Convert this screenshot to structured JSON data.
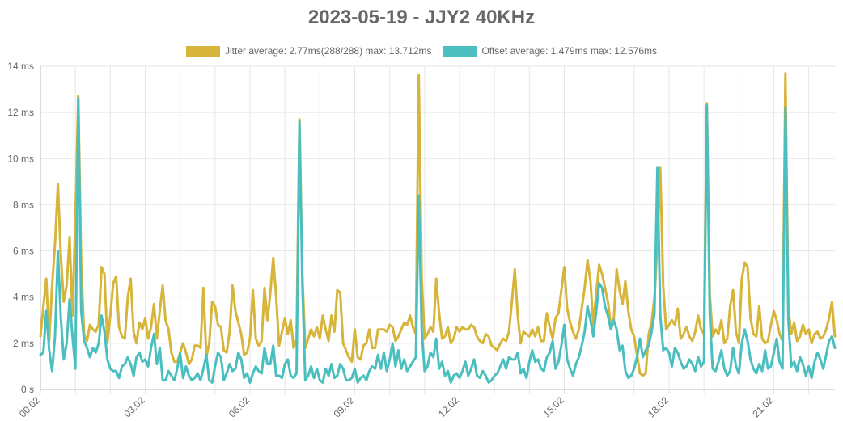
{
  "colors": {
    "jitter": "#d7b43a",
    "offset": "#4bbfc0",
    "grid": "#e6e6e6",
    "text": "#666666"
  },
  "chart_data": {
    "type": "line",
    "title": "2023-05-19 - JJY2 40KHz",
    "xlabel": "",
    "ylabel": "",
    "x_start": "00:02",
    "x_step_minutes": 5,
    "ylim": [
      0,
      14
    ],
    "y_unit": "ms",
    "yticks": [
      "0 s",
      "2 ms",
      "4 ms",
      "6 ms",
      "8 ms",
      "10 ms",
      "12 ms",
      "14 ms"
    ],
    "xticks": [
      "00:02",
      "03:02",
      "06:02",
      "09:02",
      "12:02",
      "15:02",
      "18:02",
      "21:02"
    ],
    "grid": true,
    "legend_position": "top-center",
    "series": [
      {
        "name": "Jitter average: 2.77ms(288/288) max: 13.712ms",
        "values": [
          2.3,
          3.6,
          4.8,
          2.1,
          4.5,
          6.3,
          8.9,
          5.8,
          3.8,
          4.5,
          6.6,
          3.2,
          7.5,
          12.7,
          5.4,
          2.4,
          2.1,
          2.8,
          2.6,
          2.5,
          2.8,
          5.3,
          5.0,
          2.0,
          3.2,
          4.6,
          4.9,
          2.7,
          2.3,
          2.2,
          4.0,
          4.8,
          2.5,
          2.0,
          2.9,
          2.6,
          3.1,
          2.2,
          2.7,
          3.7,
          2.2,
          3.4,
          4.5,
          3.0,
          2.6,
          1.6,
          1.2,
          1.2,
          1.6,
          2.0,
          1.6,
          1.1,
          1.3,
          1.9,
          1.9,
          1.8,
          4.4,
          1.4,
          2.0,
          3.8,
          3.6,
          2.8,
          2.7,
          1.7,
          1.6,
          2.5,
          4.5,
          3.4,
          2.9,
          2.4,
          1.5,
          1.6,
          2.2,
          4.3,
          2.2,
          1.9,
          2.1,
          4.4,
          3.0,
          4.2,
          5.7,
          4.0,
          1.9,
          2.5,
          3.1,
          2.4,
          3.0,
          1.8,
          2.2,
          11.7,
          5.0,
          1.8,
          2.2,
          2.6,
          2.3,
          2.7,
          2.2,
          3.2,
          2.6,
          2.1,
          3.2,
          2.5,
          4.3,
          4.2,
          2.0,
          1.7,
          1.4,
          1.2,
          2.6,
          1.4,
          1.3,
          1.9,
          2.0,
          2.6,
          1.8,
          1.8,
          2.6,
          2.6,
          2.6,
          2.5,
          2.8,
          2.7,
          2.1,
          2.3,
          2.6,
          2.9,
          2.8,
          3.2,
          2.7,
          2.4,
          13.6,
          4.9,
          2.2,
          2.4,
          2.7,
          2.5,
          4.8,
          3.3,
          2.2,
          2.3,
          2.7,
          2.0,
          2.2,
          2.7,
          2.5,
          2.7,
          2.6,
          2.6,
          2.8,
          2.7,
          2.3,
          2.1,
          2.0,
          2.4,
          2.3,
          1.9,
          1.8,
          1.7,
          2.0,
          2.2,
          2.1,
          2.5,
          3.8,
          5.2,
          3.2,
          2.0,
          2.5,
          2.4,
          2.3,
          2.6,
          2.3,
          2.7,
          2.1,
          2.1,
          3.3,
          2.7,
          2.2,
          3.1,
          3.3,
          4.3,
          5.3,
          3.5,
          2.9,
          2.5,
          2.2,
          2.6,
          3.5,
          4.4,
          5.6,
          4.7,
          2.8,
          4.2,
          5.4,
          5.0,
          4.4,
          3.8,
          2.8,
          3.0,
          5.2,
          4.3,
          3.7,
          4.7,
          3.4,
          2.6,
          2.3,
          1.5,
          0.7,
          0.6,
          0.7,
          2.4,
          2.9,
          4.0,
          6.3,
          9.6,
          4.5,
          2.6,
          2.8,
          3.0,
          2.8,
          3.5,
          2.2,
          2.4,
          2.7,
          2.3,
          2.1,
          2.5,
          3.2,
          2.6,
          2.4,
          12.4,
          4.1,
          2.3,
          2.6,
          2.4,
          3.0,
          2.0,
          2.2,
          3.6,
          4.3,
          2.5,
          2.0,
          4.8,
          5.5,
          5.3,
          3.1,
          2.4,
          2.3,
          3.6,
          2.2,
          2.0,
          2.1,
          2.8,
          3.4,
          3.0,
          2.4,
          2.1,
          13.7,
          3.5,
          2.4,
          2.9,
          2.1,
          2.3,
          2.8,
          2.4,
          2.6,
          2.0,
          2.4,
          2.5,
          2.2,
          2.3,
          2.6,
          3.1,
          3.8,
          2.3
        ]
      },
      {
        "name": "Offset average: 1.479ms max: 12.576ms",
        "values": [
          1.5,
          1.6,
          3.4,
          1.7,
          0.8,
          2.3,
          6.0,
          3.1,
          1.3,
          2.0,
          3.9,
          2.3,
          0.9,
          12.6,
          3.4,
          2.1,
          1.8,
          1.4,
          1.8,
          1.6,
          2.0,
          3.2,
          2.5,
          1.3,
          0.9,
          0.8,
          0.8,
          0.5,
          1.0,
          1.1,
          1.4,
          1.1,
          0.6,
          1.4,
          1.6,
          1.2,
          1.3,
          1.0,
          1.8,
          2.4,
          1.1,
          1.8,
          0.4,
          0.4,
          0.8,
          0.6,
          0.4,
          0.9,
          1.6,
          0.5,
          1.0,
          0.6,
          0.4,
          0.5,
          0.7,
          0.4,
          0.9,
          1.5,
          0.4,
          0.3,
          1.0,
          1.6,
          1.4,
          0.4,
          0.7,
          1.1,
          0.8,
          0.9,
          1.6,
          1.3,
          0.5,
          0.7,
          0.3,
          0.7,
          1.0,
          0.8,
          0.7,
          1.8,
          1.1,
          1.1,
          1.9,
          0.6,
          0.6,
          0.5,
          1.1,
          1.3,
          0.6,
          0.5,
          0.7,
          11.6,
          4.5,
          0.4,
          0.6,
          1.0,
          0.5,
          0.9,
          0.4,
          0.3,
          0.9,
          0.6,
          1.1,
          0.5,
          0.6,
          1.1,
          0.9,
          0.4,
          0.4,
          0.5,
          0.9,
          0.3,
          0.5,
          0.6,
          0.4,
          0.8,
          1.0,
          0.9,
          1.5,
          0.9,
          1.6,
          0.8,
          1.3,
          2.0,
          1.0,
          1.7,
          0.9,
          1.3,
          0.8,
          1.0,
          1.2,
          1.4,
          8.4,
          2.6,
          0.8,
          1.0,
          1.6,
          1.4,
          2.2,
          0.9,
          1.2,
          0.6,
          0.8,
          0.3,
          0.6,
          0.7,
          0.5,
          0.8,
          1.2,
          0.6,
          0.9,
          1.3,
          0.6,
          0.5,
          0.8,
          0.6,
          0.3,
          0.4,
          0.6,
          0.7,
          1.0,
          1.3,
          0.9,
          1.4,
          1.3,
          1.3,
          1.6,
          0.7,
          0.9,
          0.5,
          1.2,
          1.7,
          1.2,
          1.3,
          0.9,
          0.8,
          1.4,
          1.6,
          2.1,
          0.9,
          1.2,
          1.9,
          2.8,
          1.3,
          0.9,
          0.6,
          1.1,
          1.4,
          1.9,
          2.5,
          3.6,
          3.0,
          2.3,
          3.4,
          4.6,
          4.4,
          3.6,
          3.2,
          2.6,
          3.0,
          2.6,
          1.7,
          1.9,
          0.8,
          0.5,
          0.6,
          0.9,
          1.4,
          2.2,
          1.4,
          1.7,
          1.9,
          2.5,
          3.3,
          9.6,
          3.2,
          1.7,
          1.8,
          1.6,
          1.0,
          1.8,
          1.6,
          1.2,
          0.9,
          1.0,
          1.3,
          1.1,
          0.8,
          1.4,
          1.0,
          1.2,
          12.3,
          3.2,
          0.9,
          0.8,
          1.2,
          1.7,
          0.9,
          0.6,
          0.8,
          1.8,
          1.0,
          0.7,
          2.0,
          2.6,
          2.1,
          1.3,
          0.9,
          0.7,
          1.1,
          0.8,
          1.7,
          0.9,
          1.0,
          1.6,
          2.2,
          1.2,
          0.9,
          12.2,
          3.0,
          1.0,
          1.2,
          0.8,
          1.4,
          1.1,
          0.6,
          1.0,
          0.5,
          1.2,
          1.6,
          1.3,
          0.9,
          1.5,
          2.1,
          2.3,
          1.8
        ]
      }
    ]
  }
}
